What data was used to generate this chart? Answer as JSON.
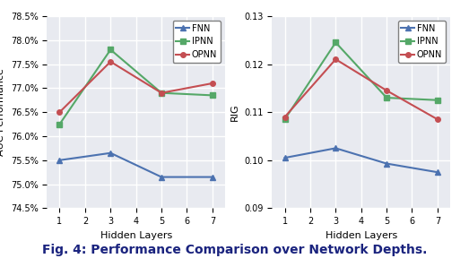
{
  "x": [
    1,
    3,
    5,
    7
  ],
  "fnn_auc": [
    75.5,
    75.65,
    75.15,
    75.15
  ],
  "ipnn_auc": [
    76.25,
    77.8,
    76.9,
    76.85
  ],
  "opnn_auc": [
    76.5,
    77.55,
    76.9,
    77.1
  ],
  "fnn_rig": [
    0.1005,
    0.1025,
    0.0993,
    0.0975
  ],
  "ipnn_rig": [
    0.1085,
    0.1245,
    0.113,
    0.1125
  ],
  "opnn_rig": [
    0.109,
    0.121,
    0.1145,
    0.1085
  ],
  "fnn_color": "#4c72b0",
  "ipnn_color": "#55a868",
  "opnn_color": "#c44e52",
  "auc_ylim": [
    74.5,
    78.5
  ],
  "auc_yticks": [
    74.5,
    75.0,
    75.5,
    76.0,
    76.5,
    77.0,
    77.5,
    78.0,
    78.5
  ],
  "rig_ylim": [
    0.09,
    0.13
  ],
  "rig_yticks": [
    0.09,
    0.1,
    0.11,
    0.12,
    0.13
  ],
  "xlim": [
    0.5,
    7.5
  ],
  "xticks": [
    1,
    2,
    3,
    4,
    5,
    6,
    7
  ],
  "xlabel": "Hidden Layers",
  "auc_ylabel": "AUC Performance",
  "rig_ylabel": "RIG",
  "caption": "Fig. 4: Performance Comparison over Network Depths.",
  "bg_color": "#e8eaf0",
  "grid_color": "white",
  "caption_color": "#1a237e",
  "marker_size": 4,
  "line_width": 1.5,
  "tick_labelsize": 7,
  "axis_labelsize": 8,
  "legend_fontsize": 7
}
